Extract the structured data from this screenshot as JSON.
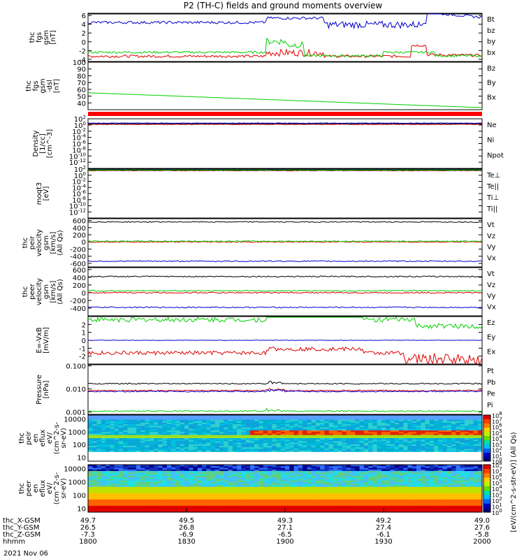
{
  "title": "P2 (TH-C) fields and ground moments overview",
  "date_label": "2021 Nov 06",
  "colors": {
    "black": "#000000",
    "red": "#e00000",
    "green": "#00d000",
    "blue": "#0000cc",
    "frame": "#000000"
  },
  "time_axis": {
    "tick_hhmm": [
      "1800",
      "1830",
      "1900",
      "1930",
      "2000"
    ],
    "rows": [
      {
        "label": "thc_X-GSM",
        "values": [
          "49.7",
          "49.5",
          "49.3",
          "49.2",
          "49.0"
        ]
      },
      {
        "label": "thc_Y-GSM",
        "values": [
          "26.5",
          "26.8",
          "27.1",
          "27.4",
          "27.6"
        ]
      },
      {
        "label": "thc_Z-GSM",
        "values": [
          "-7.3",
          "-6.9",
          "-6.5",
          "-6.1",
          "-5.8"
        ]
      },
      {
        "label": "hhmm",
        "values": [
          "1800",
          "1830",
          "1900",
          "1930",
          "2000"
        ]
      }
    ]
  },
  "colorbar": {
    "ticks": [
      "10^8",
      "10^7",
      "10^6",
      "10^5",
      "10^4",
      "10^3",
      "10^2",
      "10^1",
      "10^0"
    ],
    "label": "[eV/(cm^2-s-str-eV)] (All Qs)"
  },
  "chart_data": [
    {
      "type": "line",
      "panel": "fgs_gsm",
      "ylabel": [
        "thc",
        "fgs",
        "gsm",
        "[nT]"
      ],
      "ylim": [
        -4.5,
        6.5
      ],
      "yticks": [
        "6",
        "4",
        "2",
        "0",
        "-2",
        "-4"
      ],
      "series": [
        {
          "name": "Bt",
          "color": "black",
          "base": 4.5
        },
        {
          "name": "bz",
          "color": "red",
          "base": -1.8
        },
        {
          "name": "by",
          "color": "green",
          "base": -1.2
        },
        {
          "name": "bx",
          "color": "blue",
          "base": 2.2
        }
      ],
      "legend": [
        "Bt",
        "bz",
        "by",
        "bx"
      ]
    },
    {
      "type": "line",
      "panel": "fgs_gsm_dsl",
      "ylabel": [
        "thc",
        "fgs",
        "gsm",
        "-dsl",
        "[nT]"
      ],
      "ylim": [
        30,
        100
      ],
      "yticks": [
        "100",
        "90",
        "80",
        "70",
        "60",
        "50",
        "40"
      ],
      "series": [
        {
          "name": "By",
          "color": "green",
          "start": 55,
          "end": 33
        }
      ],
      "legend": [
        "Bz",
        "By",
        "Bx"
      ]
    },
    {
      "type": "line",
      "panel": "density",
      "ylabel": [
        "Density",
        "[1/cc]",
        "[cm^-3]"
      ],
      "ylim": [
        -14,
        2
      ],
      "yticks": [
        "10^2",
        "10^0",
        "10^-2",
        "10^-4",
        "10^-6",
        "10^-8",
        "10^-10",
        "10^-12"
      ],
      "series": [
        {
          "name": "Ne",
          "color": "red",
          "value_log": 0.2
        },
        {
          "name": "Ni",
          "color": "black",
          "value_log": 0.4
        },
        {
          "name": "Npot",
          "color": "blue",
          "value_log": 0.6
        }
      ],
      "legend": [
        "Ne",
        "Ni",
        "Npot"
      ]
    },
    {
      "type": "line",
      "panel": "temperature",
      "ylabel": [
        "moqt3",
        "[eV]"
      ],
      "ylim": [
        -14,
        2
      ],
      "yticks": [
        "10^2",
        "10^0",
        "10^-2",
        "10^-4",
        "10^-6",
        "10^-8",
        "10^-10",
        "10^-12"
      ],
      "series": [
        {
          "name": "Te⊥",
          "color": "red",
          "value_log": 1.5
        },
        {
          "name": "Te||",
          "color": "black",
          "value_log": 1.6
        },
        {
          "name": "Ti⊥",
          "color": "blue",
          "value_log": 1.8
        },
        {
          "name": "Ti||",
          "color": "green",
          "value_log": 1.7
        }
      ],
      "legend": [
        "Te⊥",
        "Te||",
        "Ti⊥",
        "Ti||"
      ]
    },
    {
      "type": "line",
      "panel": "peir_velocity",
      "ylabel": [
        "thc",
        "peir",
        "velocity",
        "gsm",
        "[km/s]",
        "(All Qs)"
      ],
      "ylim": [
        -700,
        650
      ],
      "yticks": [
        "600",
        "400",
        "200",
        "0",
        "-200",
        "-400",
        "-600"
      ],
      "series": [
        {
          "name": "Vt",
          "color": "black",
          "base": 560
        },
        {
          "name": "Vz",
          "color": "red",
          "base": 0
        },
        {
          "name": "Vy",
          "color": "green",
          "base": 20
        },
        {
          "name": "Vx",
          "color": "blue",
          "base": -540
        }
      ],
      "legend": [
        "Vt",
        "Vz",
        "Vy",
        "Vx"
      ]
    },
    {
      "type": "line",
      "panel": "peer_velocity",
      "ylabel": [
        "thc",
        "peer",
        "velocity",
        "gsm",
        "[km/s]",
        "(All Qs)"
      ],
      "ylim": [
        -600,
        650
      ],
      "yticks": [
        "600",
        "400",
        "200",
        "0",
        "-200",
        "-400"
      ],
      "series": [
        {
          "name": "Vt",
          "color": "black",
          "base": 420
        },
        {
          "name": "Vz",
          "color": "red",
          "base": 0
        },
        {
          "name": "Vy",
          "color": "green",
          "base": 50
        },
        {
          "name": "Vx",
          "color": "blue",
          "base": -380
        }
      ],
      "legend": [
        "Vt",
        "Vz",
        "Vy",
        "Vx"
      ]
    },
    {
      "type": "line",
      "panel": "efield",
      "ylabel": [
        "E=-VxB",
        "[mV/m]"
      ],
      "ylim": [
        -3,
        3
      ],
      "yticks": [
        "2",
        "1",
        "0",
        "-1",
        "-2"
      ],
      "series": [
        {
          "name": "Ez",
          "color": "red",
          "base": -0.8
        },
        {
          "name": "Ey",
          "color": "green",
          "base": 1.3
        },
        {
          "name": "Ex",
          "color": "blue",
          "base": 0
        }
      ],
      "legend": [
        "Ez",
        "Ey",
        "Ex"
      ]
    },
    {
      "type": "line",
      "panel": "pressure",
      "ylabel": [
        "Pressure",
        "[nPa]"
      ],
      "ylim_log": [
        -3.1,
        -0.95
      ],
      "yticks": [
        "0.100",
        "0.010",
        "0.001"
      ],
      "series": [
        {
          "name": "Pt",
          "color": "black",
          "value": 0.017
        },
        {
          "name": "Pb",
          "color": "red",
          "value": 0.0085
        },
        {
          "name": "Pe",
          "color": "green",
          "value": 0.0011
        },
        {
          "name": "Pi",
          "color": "blue",
          "value": 0.0078
        }
      ],
      "legend": [
        "Pt",
        "Pb",
        "Pe",
        "Pi"
      ]
    },
    {
      "type": "heatmap",
      "panel": "peir_spectrogram",
      "ylabel": [
        "thc",
        "peir",
        "en",
        "eflux",
        "eV/",
        "(cm^2-s-",
        "sr-eV)"
      ],
      "ylim_log": [
        0.7,
        4.3
      ],
      "yticks": [
        "10000",
        "1000",
        "100",
        "10"
      ]
    },
    {
      "type": "heatmap",
      "panel": "peer_spectrogram",
      "ylabel": [
        "thc",
        "peer",
        "en",
        "eflux",
        "eV/",
        "(cm^2-s-",
        "sr-eV)"
      ],
      "ylim_log": [
        0.7,
        4.3
      ],
      "yticks": [
        "10000",
        "1000",
        "100",
        "10"
      ]
    }
  ]
}
